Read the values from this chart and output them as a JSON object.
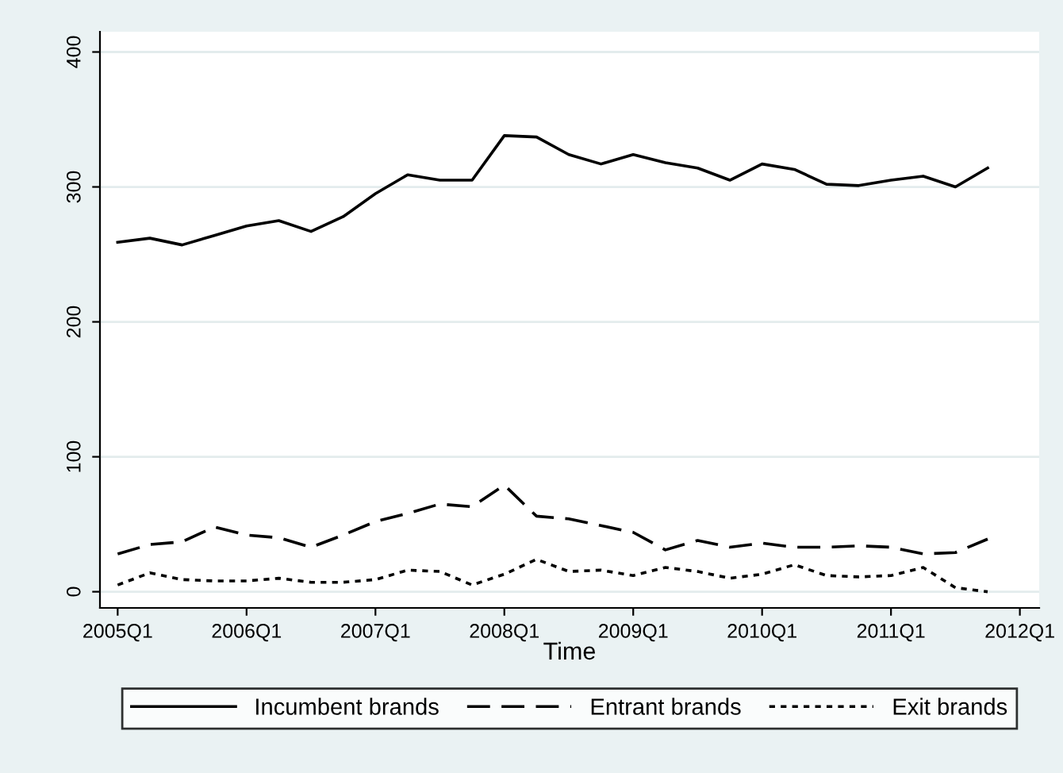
{
  "chart_data": {
    "type": "line",
    "xlabel": "Time",
    "categories": [
      "2005Q1",
      null,
      null,
      null,
      "2006Q1",
      null,
      null,
      null,
      "2007Q1",
      null,
      null,
      null,
      "2008Q1",
      null,
      null,
      null,
      "2009Q1",
      null,
      null,
      null,
      "2010Q1",
      null,
      null,
      null,
      "2011Q1",
      null,
      null,
      null,
      "2012Q1"
    ],
    "series": [
      {
        "name": "Incumbent brands",
        "color": "#000000",
        "line_style": "solid",
        "values": [
          259,
          262,
          257,
          264,
          271,
          275,
          267,
          278,
          295,
          309,
          305,
          305,
          338,
          337,
          324,
          317,
          324,
          318,
          314,
          305,
          317,
          313,
          302,
          301,
          305,
          308,
          300,
          314,
          null
        ]
      },
      {
        "name": "Entrant brands",
        "color": "#000000",
        "line_style": "dashed",
        "values": [
          28,
          35,
          37,
          48,
          42,
          40,
          33,
          42,
          52,
          58,
          65,
          63,
          79,
          56,
          54,
          49,
          44,
          31,
          38,
          33,
          36,
          33,
          33,
          34,
          33,
          28,
          29,
          39,
          null
        ]
      },
      {
        "name": "Exit brands",
        "color": "#000000",
        "line_style": "dotted",
        "values": [
          5,
          14,
          9,
          8,
          8,
          10,
          7,
          7,
          9,
          16,
          15,
          5,
          13,
          24,
          15,
          16,
          12,
          18,
          15,
          10,
          13,
          20,
          12,
          11,
          12,
          18,
          3,
          0,
          null
        ]
      }
    ],
    "ylim": [
      -12,
      415
    ],
    "yticks": [
      0,
      100,
      200,
      300,
      400
    ],
    "grid": "y",
    "legend": "bottom",
    "marker": "none"
  }
}
